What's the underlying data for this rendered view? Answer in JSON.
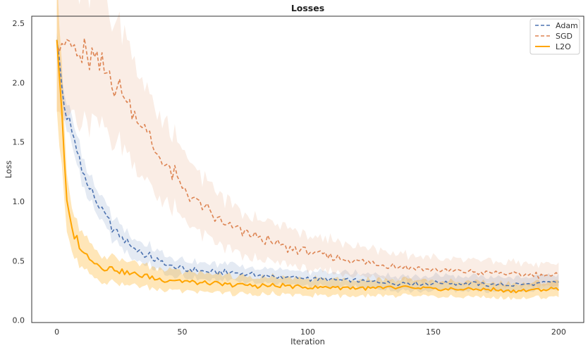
{
  "chart_data": {
    "type": "line",
    "title": "Losses",
    "xlabel": "Iteration",
    "ylabel": "Loss",
    "xlim": [
      -10,
      210
    ],
    "ylim": [
      -0.02,
      2.56
    ],
    "xticks": [
      0,
      50,
      100,
      150,
      200
    ],
    "xtick_labels": [
      "0",
      "50",
      "100",
      "150",
      "200"
    ],
    "yticks": [
      0.0,
      0.5,
      1.0,
      1.5,
      2.0,
      2.5
    ],
    "ytick_labels": [
      "0.0",
      "0.5",
      "1.0",
      "1.5",
      "2.0",
      "2.5"
    ],
    "grid": false,
    "legend": "top-right",
    "series": [
      {
        "name": "Adam",
        "color": "#4c72b0",
        "dash": "dashed",
        "x": [
          0,
          2,
          5,
          8,
          10,
          12,
          15,
          18,
          20,
          25,
          30,
          35,
          40,
          45,
          50,
          55,
          60,
          70,
          80,
          90,
          100,
          110,
          120,
          130,
          140,
          150,
          160,
          170,
          180,
          190,
          200
        ],
        "values": [
          2.36,
          1.95,
          1.62,
          1.45,
          1.28,
          1.15,
          1.02,
          0.9,
          0.85,
          0.72,
          0.62,
          0.56,
          0.5,
          0.46,
          0.43,
          0.42,
          0.41,
          0.4,
          0.38,
          0.36,
          0.35,
          0.34,
          0.33,
          0.32,
          0.31,
          0.31,
          0.31,
          0.3,
          0.3,
          0.3,
          0.32
        ],
        "band": [
          0.06,
          0.09,
          0.12,
          0.12,
          0.12,
          0.11,
          0.1,
          0.1,
          0.1,
          0.09,
          0.09,
          0.08,
          0.08,
          0.08,
          0.07,
          0.07,
          0.07,
          0.07,
          0.06,
          0.06,
          0.06,
          0.06,
          0.06,
          0.06,
          0.06,
          0.06,
          0.06,
          0.06,
          0.06,
          0.06,
          0.06
        ]
      },
      {
        "name": "SGD",
        "color": "#dd8452",
        "dash": "dashed",
        "x": [
          0,
          5,
          10,
          15,
          20,
          25,
          30,
          35,
          40,
          45,
          50,
          55,
          60,
          65,
          70,
          75,
          80,
          90,
          100,
          110,
          120,
          130,
          140,
          150,
          160,
          170,
          180,
          190,
          200
        ],
        "values": [
          2.34,
          2.3,
          2.25,
          2.18,
          2.08,
          1.95,
          1.8,
          1.6,
          1.42,
          1.27,
          1.12,
          1.02,
          0.92,
          0.84,
          0.78,
          0.73,
          0.7,
          0.62,
          0.57,
          0.53,
          0.5,
          0.47,
          0.44,
          0.42,
          0.41,
          0.4,
          0.39,
          0.38,
          0.38
        ]
      },
      {
        "name": "L2O",
        "color": "#ffa500",
        "dash": "solid",
        "x": [
          0,
          1,
          2,
          3,
          4,
          5,
          6,
          7,
          8,
          10,
          12,
          15,
          18,
          20,
          25,
          30,
          35,
          40,
          50,
          60,
          70,
          80,
          90,
          100,
          110,
          120,
          130,
          140,
          150,
          160,
          170,
          180,
          190,
          200
        ],
        "values": [
          2.36,
          2.1,
          1.75,
          1.3,
          1.0,
          0.85,
          0.75,
          0.7,
          0.68,
          0.58,
          0.54,
          0.49,
          0.45,
          0.44,
          0.42,
          0.39,
          0.37,
          0.35,
          0.33,
          0.31,
          0.3,
          0.29,
          0.29,
          0.28,
          0.28,
          0.27,
          0.27,
          0.27,
          0.26,
          0.26,
          0.26,
          0.25,
          0.25,
          0.27
        ]
      }
    ]
  }
}
